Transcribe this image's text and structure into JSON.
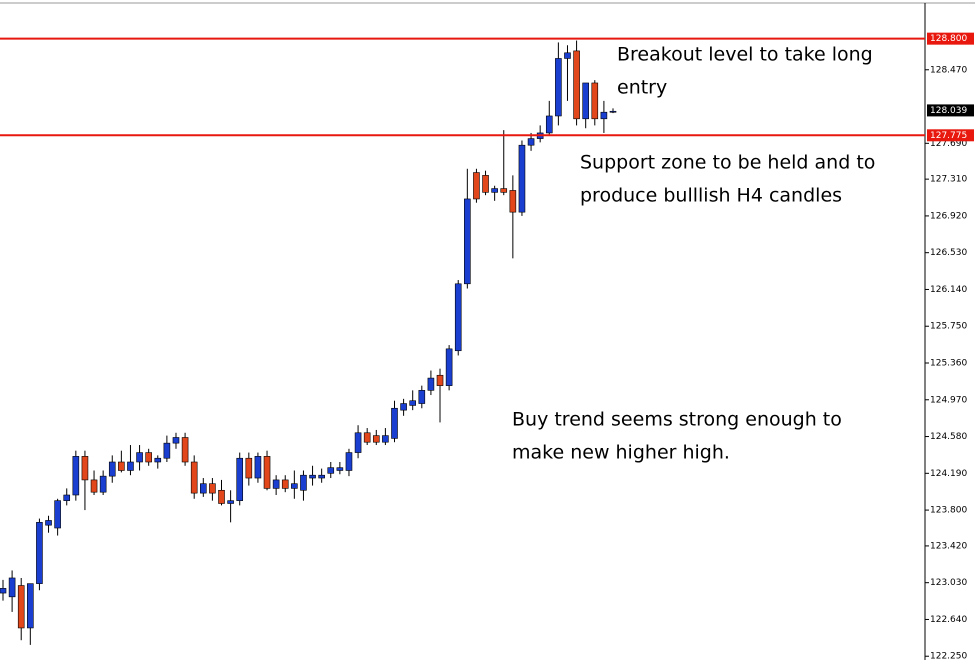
{
  "chart_data": {
    "type": "candlestick",
    "open": [
      122.92,
      122.88,
      123.0,
      122.55,
      123.02,
      123.64,
      123.61,
      123.9,
      123.96,
      124.37,
      124.12,
      123.99,
      124.16,
      124.31,
      124.22,
      124.31,
      124.41,
      124.31,
      124.35,
      124.51,
      124.57,
      124.31,
      123.98,
      124.08,
      124.01,
      123.87,
      123.9,
      124.35,
      124.14,
      124.37,
      124.03,
      124.12,
      124.03,
      124.01,
      124.14,
      124.14,
      124.19,
      124.22,
      124.22,
      124.41,
      124.62,
      124.59,
      124.52,
      124.56,
      124.86,
      124.91,
      124.93,
      125.07,
      125.23,
      125.12,
      125.49,
      126.2,
      127.38,
      127.35,
      127.17,
      127.21,
      127.19,
      126.96,
      127.67,
      127.74,
      127.8,
      127.98,
      128.59,
      128.67,
      127.95,
      128.33,
      127.95,
      128.03
    ],
    "high": [
      123.06,
      123.16,
      123.08,
      123.02,
      123.71,
      123.74,
      123.92,
      124.03,
      124.43,
      124.43,
      124.22,
      124.22,
      124.38,
      124.43,
      124.49,
      124.49,
      124.45,
      124.38,
      124.59,
      124.62,
      124.62,
      124.38,
      124.14,
      124.14,
      124.12,
      124.01,
      124.41,
      124.41,
      124.41,
      124.43,
      124.17,
      124.17,
      124.22,
      124.22,
      124.27,
      124.24,
      124.31,
      124.31,
      124.45,
      124.7,
      124.67,
      124.65,
      124.67,
      124.96,
      124.98,
      125.07,
      125.12,
      125.28,
      125.3,
      125.55,
      126.24,
      127.42,
      127.42,
      127.4,
      127.24,
      127.83,
      127.35,
      127.72,
      127.8,
      127.88,
      128.14,
      128.76,
      128.73,
      128.78,
      128.33,
      128.36,
      128.14,
      128.06
    ],
    "low": [
      122.84,
      122.72,
      122.42,
      122.37,
      122.95,
      123.56,
      123.53,
      123.85,
      123.9,
      123.8,
      123.96,
      123.96,
      124.09,
      124.2,
      124.17,
      124.22,
      124.27,
      124.24,
      124.31,
      124.45,
      124.27,
      123.92,
      123.94,
      123.9,
      123.85,
      123.67,
      123.85,
      124.06,
      124.09,
      124.01,
      123.96,
      123.99,
      123.92,
      123.9,
      124.06,
      124.09,
      124.14,
      124.18,
      124.16,
      124.35,
      124.49,
      124.49,
      124.49,
      124.52,
      124.8,
      124.86,
      124.88,
      125.02,
      124.73,
      125.07,
      125.44,
      126.15,
      127.06,
      127.14,
      127.08,
      127.14,
      126.47,
      126.92,
      127.61,
      127.7,
      127.77,
      127.88,
      128.14,
      127.88,
      127.85,
      127.88,
      127.8,
      128.01
    ],
    "close": [
      122.97,
      123.08,
      122.55,
      123.02,
      123.67,
      123.69,
      123.9,
      123.96,
      124.37,
      124.12,
      123.99,
      124.16,
      124.31,
      124.22,
      124.31,
      124.41,
      124.31,
      124.35,
      124.51,
      124.57,
      124.31,
      123.98,
      124.08,
      123.98,
      123.87,
      123.9,
      124.35,
      124.14,
      124.37,
      124.03,
      124.12,
      124.03,
      124.08,
      124.17,
      124.17,
      124.17,
      124.25,
      124.25,
      124.41,
      124.62,
      124.52,
      124.52,
      124.59,
      124.88,
      124.93,
      124.96,
      125.07,
      125.2,
      125.12,
      125.51,
      126.2,
      127.1,
      127.1,
      127.17,
      127.21,
      127.17,
      126.96,
      127.67,
      127.74,
      127.8,
      127.98,
      128.59,
      128.65,
      127.95,
      128.33,
      127.95,
      128.02,
      128.03
    ],
    "up_color": "#1a3fd0",
    "down_color": "#e2471b",
    "ylim": [
      122.21,
      129.21
    ],
    "yticks": [
      {
        "value": 128.47,
        "label": "128.470"
      },
      {
        "value": 127.69,
        "label": "127.690"
      },
      {
        "value": 127.31,
        "label": "127.310"
      },
      {
        "value": 126.92,
        "label": "126.920"
      },
      {
        "value": 126.53,
        "label": "126.530"
      },
      {
        "value": 126.14,
        "label": "126.140"
      },
      {
        "value": 125.75,
        "label": "125.750"
      },
      {
        "value": 125.36,
        "label": "125.360"
      },
      {
        "value": 124.97,
        "label": "124.970"
      },
      {
        "value": 124.58,
        "label": "124.580"
      },
      {
        "value": 124.19,
        "label": "124.190"
      },
      {
        "value": 123.8,
        "label": "123.800"
      },
      {
        "value": 123.42,
        "label": "123.420"
      },
      {
        "value": 123.03,
        "label": "123.030"
      },
      {
        "value": 122.64,
        "label": "122.640"
      },
      {
        "value": 122.25,
        "label": "122.250"
      }
    ],
    "hlines": [
      {
        "value": 128.8,
        "label": "128.800",
        "color": "#e8180e"
      },
      {
        "value": 127.775,
        "label": "127.775",
        "color": "#e8180e"
      }
    ],
    "last_price": {
      "value": 128.039,
      "label": "128.039",
      "color": "#000000"
    },
    "annotations": [
      {
        "lines": [
          "Breakout level to take long",
          "entry"
        ]
      },
      {
        "lines": [
          "Support zone to be held and to",
          "produce bulllish H4 candles"
        ]
      },
      {
        "lines": [
          "Buy trend seems strong enough to",
          "make new higher high."
        ]
      }
    ]
  }
}
